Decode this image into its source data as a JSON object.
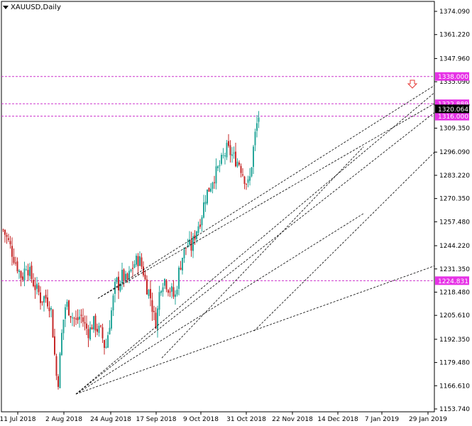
{
  "symbol": "XAUUSD",
  "timeframe": "Daily",
  "title": "XAUUSD,Daily",
  "colors": {
    "background": "#ffffff",
    "bull": "#26a69a",
    "bear": "#c62828",
    "hline": "#cc33cc",
    "trend": "#000000",
    "label_bg": "#e632e6",
    "label_text": "#ffffff",
    "current_bg": "#000000",
    "arrow": "#e53935"
  },
  "price_axis": {
    "min": 1153.74,
    "max": 1374.09,
    "ticks": [
      "1374.090",
      "1361.220",
      "1347.960",
      "1335.090",
      "1322.220",
      "1309.350",
      "1296.090",
      "1283.220",
      "1270.350",
      "1257.480",
      "1244.220",
      "1231.350",
      "1218.480",
      "1205.610",
      "1192.350",
      "1179.480",
      "1166.610",
      "1153.740"
    ]
  },
  "time_axis": {
    "labels": [
      "11 Jul 2018",
      "2 Aug 2018",
      "24 Aug 2018",
      "17 Sep 2018",
      "9 Oct 2018",
      "31 Oct 2018",
      "22 Nov 2018",
      "14 Dec 2018",
      "7 Jan 2019",
      "29 Jan 2019"
    ]
  },
  "horizontal_levels": [
    {
      "price": 1338.0,
      "label": "1338.000"
    },
    {
      "price": 1322.889,
      "label": "1322.889"
    },
    {
      "price": 1316.0,
      "label": "1316.000"
    },
    {
      "price": 1224.831,
      "label": "1224.831"
    }
  ],
  "current_price": {
    "price": 1320.064,
    "label": "1320.064"
  },
  "arrow_icon": "down-arrow-icon",
  "chart_data": {
    "type": "candlestick",
    "title": "XAUUSD,Daily",
    "bar_count": 145,
    "close_path": [
      [
        0,
        1253
      ],
      [
        6,
        1245
      ],
      [
        10,
        1238
      ],
      [
        14,
        1232
      ],
      [
        18,
        1226
      ],
      [
        22,
        1234
      ],
      [
        26,
        1228
      ],
      [
        30,
        1222
      ],
      [
        34,
        1218
      ],
      [
        36,
        1214
      ],
      [
        40,
        1216
      ],
      [
        44,
        1212
      ],
      [
        46,
        1208
      ],
      [
        48,
        1192
      ],
      [
        50,
        1178
      ],
      [
        52,
        1165
      ],
      [
        54,
        1180
      ],
      [
        56,
        1195
      ],
      [
        58,
        1205
      ],
      [
        60,
        1213
      ],
      [
        62,
        1210
      ],
      [
        66,
        1205
      ],
      [
        70,
        1202
      ],
      [
        74,
        1206
      ],
      [
        78,
        1200
      ],
      [
        82,
        1196
      ],
      [
        86,
        1202
      ],
      [
        90,
        1198
      ],
      [
        94,
        1196
      ],
      [
        96,
        1190
      ],
      [
        98,
        1187
      ],
      [
        100,
        1195
      ],
      [
        104,
        1210
      ],
      [
        106,
        1218
      ],
      [
        108,
        1225
      ],
      [
        110,
        1222
      ],
      [
        114,
        1228
      ],
      [
        118,
        1224
      ],
      [
        122,
        1230
      ],
      [
        126,
        1235
      ],
      [
        130,
        1237
      ],
      [
        134,
        1230
      ],
      [
        136,
        1224
      ],
      [
        138,
        1220
      ],
      [
        140,
        1218
      ],
      [
        142,
        1212
      ],
      [
        144,
        1205
      ],
      [
        146,
        1202
      ],
      [
        148,
        1210
      ],
      [
        150,
        1222
      ],
      [
        154,
        1226
      ],
      [
        158,
        1221
      ],
      [
        162,
        1218
      ],
      [
        164,
        1214
      ],
      [
        166,
        1222
      ],
      [
        168,
        1230
      ],
      [
        172,
        1240
      ],
      [
        176,
        1245
      ],
      [
        180,
        1243
      ],
      [
        184,
        1252
      ],
      [
        188,
        1258
      ],
      [
        190,
        1262
      ],
      [
        192,
        1268
      ],
      [
        194,
        1273
      ],
      [
        198,
        1277
      ],
      [
        200,
        1281
      ],
      [
        204,
        1285
      ],
      [
        208,
        1290
      ],
      [
        212,
        1295
      ],
      [
        214,
        1298
      ],
      [
        218,
        1295
      ],
      [
        222,
        1292
      ],
      [
        226,
        1290
      ],
      [
        228,
        1286
      ],
      [
        232,
        1280
      ],
      [
        234,
        1278
      ],
      [
        236,
        1282
      ],
      [
        238,
        1292
      ],
      [
        240,
        1302
      ],
      [
        242,
        1310
      ],
      [
        244,
        1315
      ],
      [
        246,
        1322
      ]
    ],
    "note": "OHLC bars approximated from the figure along the close path",
    "trendlines": [
      {
        "from": [
          "2 Aug 2018",
          1162
        ],
        "to": [
          "29 Jan 2019",
          1233
        ]
      },
      {
        "from": [
          "2 Aug 2018",
          1162
        ],
        "to": [
          "29 Jan 2019",
          1329
        ]
      },
      {
        "from": [
          "2 Aug 2018",
          1162
        ],
        "to": [
          "29 Jan 2019",
          1318
        ]
      },
      {
        "from": [
          "24 Aug 2018",
          1215
        ],
        "to": [
          "29 Jan 2019",
          1333
        ]
      },
      {
        "from": [
          "24 Aug 2018",
          1215
        ],
        "to": [
          "29 Jan 2019",
          1323
        ]
      },
      {
        "from": [
          "31 Oct 2018",
          1197
        ],
        "to": [
          "29 Jan 2019",
          1296
        ]
      },
      {
        "from": [
          "17 Sep 2018",
          1182
        ],
        "to": [
          "14 Dec 2018",
          1299
        ]
      },
      {
        "from": [
          "2 Aug 2018",
          1162
        ],
        "to": [
          "14 Dec 2018",
          1262
        ]
      }
    ]
  }
}
